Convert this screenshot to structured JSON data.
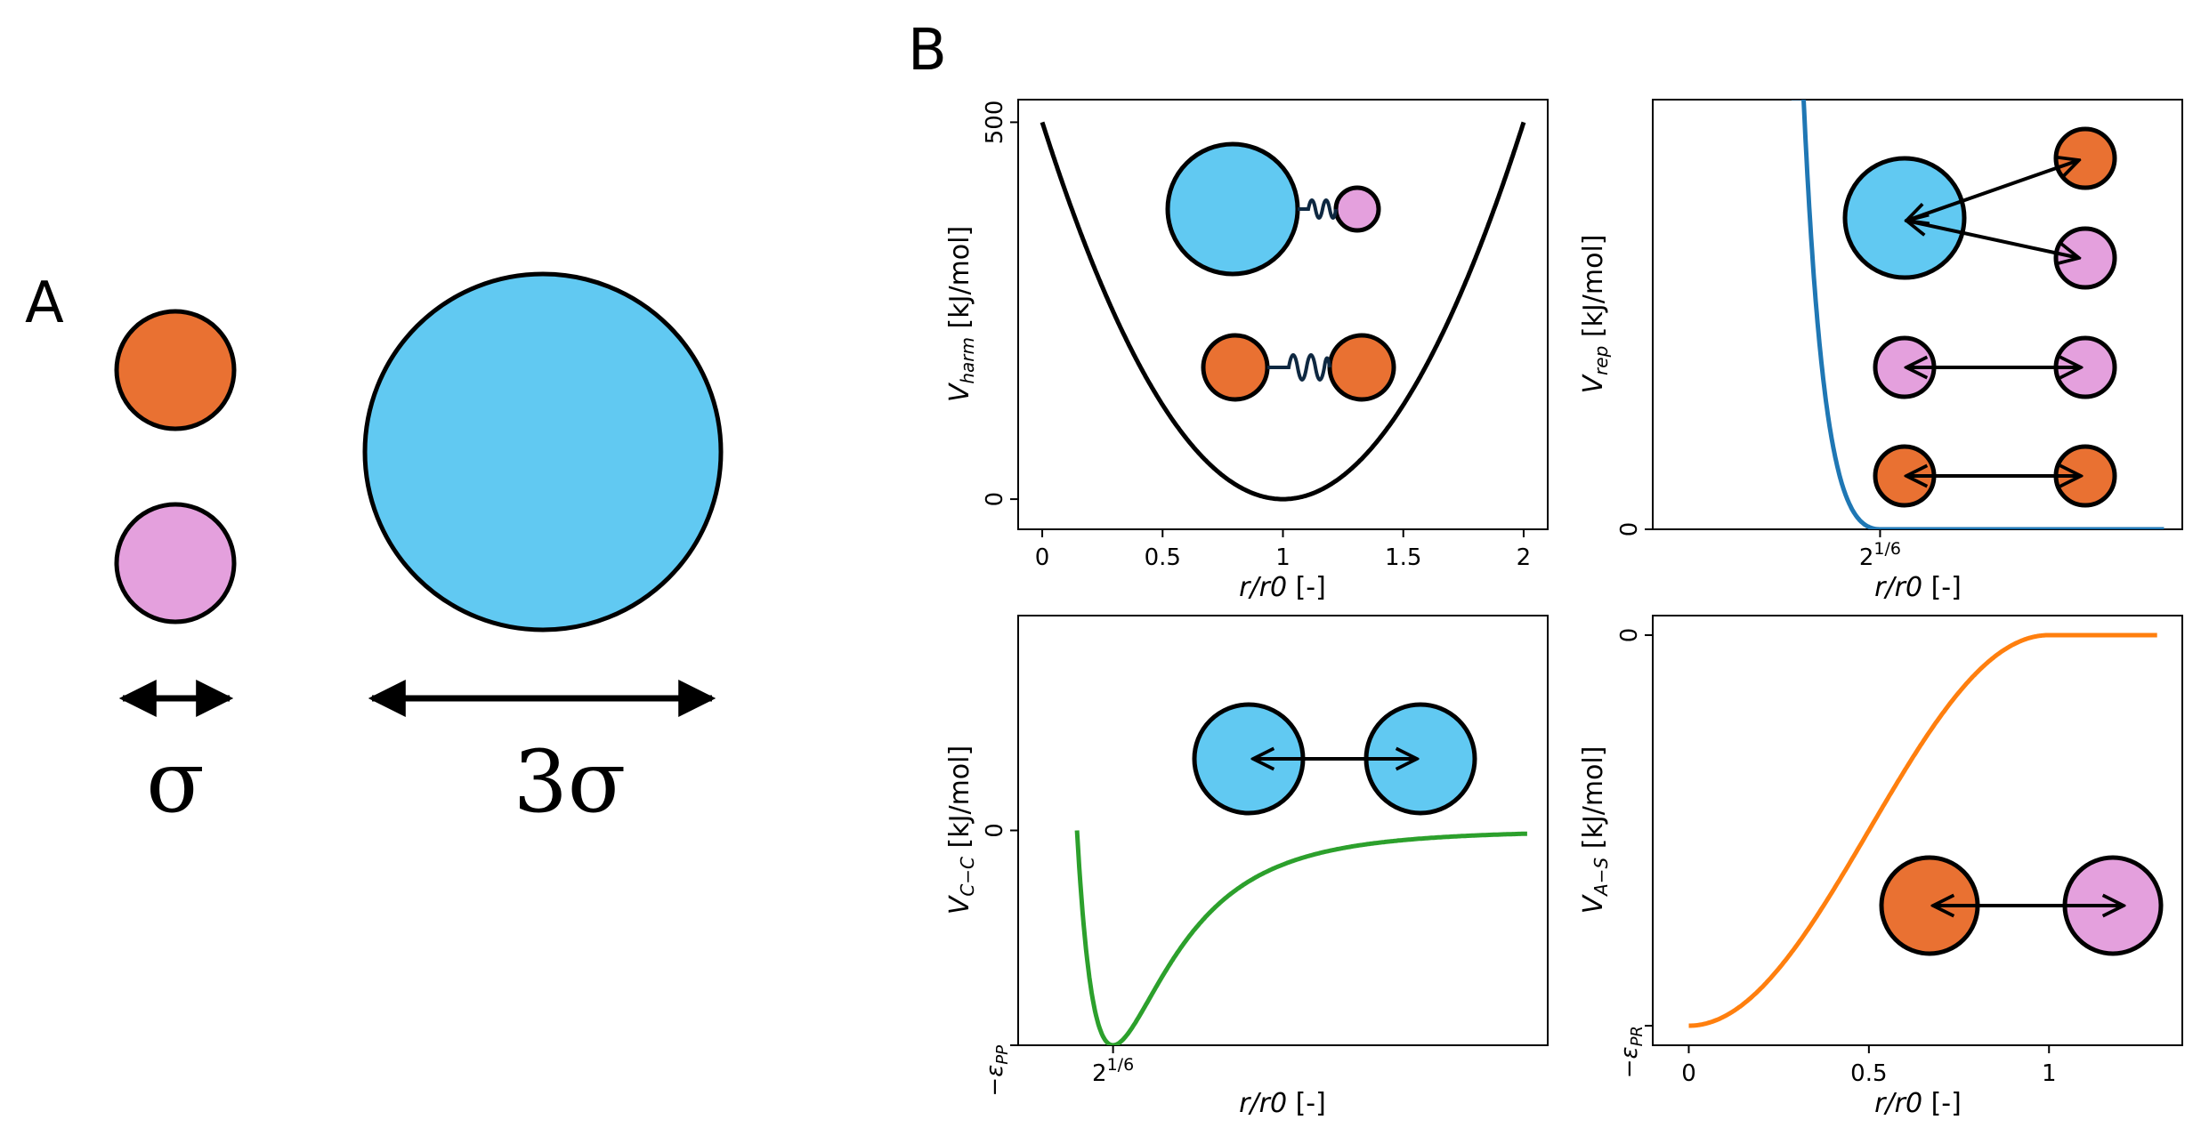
{
  "colors": {
    "small_orange": "#E97132",
    "small_pink": "#E4A0DD",
    "large_blue": "#61C9F2",
    "curve_harm": "#000000",
    "curve_rep": "#1F77B4",
    "curve_cc": "#2CA02C",
    "curve_as": "#FF7F0E",
    "spring": "#0E2841"
  },
  "panelA": {
    "letter": "A",
    "small_label": "σ",
    "large_label": "3σ"
  },
  "panelB": {
    "letter": "B"
  },
  "chart_data": [
    {
      "type": "line",
      "name_key": "harmonic",
      "ylabel_main": "V",
      "ylabel_sub": "harm",
      "ylabel_unit": " [kJ/mol]",
      "xlabel_main": "r/r0",
      "xlabel_unit": " [-]",
      "xlim": [
        -0.1,
        2.1
      ],
      "ylim": [
        -40,
        530
      ],
      "x_ticks": [
        "0",
        "0.5",
        "1",
        "1.5",
        "2"
      ],
      "x_tick_values": [
        0,
        0.5,
        1,
        1.5,
        2
      ],
      "y_ticks": [
        "0",
        "500"
      ],
      "y_tick_values": [
        0,
        500
      ],
      "function": "harmonic",
      "k": 500,
      "x_range": [
        0,
        2
      ]
    },
    {
      "type": "line",
      "name_key": "repulsive",
      "ylabel_main": "V",
      "ylabel_sub": "rep",
      "ylabel_unit": " [kJ/mol]",
      "xlabel_main": "r/r0",
      "xlabel_unit": " [-]",
      "xlim": [
        0.5,
        1.95
      ],
      "ylim": [
        0,
        6
      ],
      "x_ticks": [
        "2^1/6"
      ],
      "x_tick_base": "2",
      "x_tick_sup": "1/6",
      "x_tick_values": [
        1.1225
      ],
      "y_ticks": [
        "0"
      ],
      "y_tick_values": [
        0
      ],
      "function": "wca_repulsive",
      "x_range": [
        0.88,
        1.9
      ]
    },
    {
      "type": "line",
      "name_key": "cc",
      "ylabel_main": "V",
      "ylabel_sub": "C−C",
      "ylabel_unit": " [kJ/mol]",
      "xlabel_main": "r/r0",
      "xlabel_unit": " [-]",
      "xlim": [
        0.8,
        2.6
      ],
      "ylim": [
        -1,
        1
      ],
      "x_ticks": [
        "2^1/6"
      ],
      "x_tick_base": "2",
      "x_tick_sup": "1/6",
      "x_tick_values": [
        1.1225
      ],
      "y_ticks": [
        "0",
        "−ε_PP"
      ],
      "y_tick_values": [
        0,
        -1
      ],
      "y_tick_min_main": "−ε",
      "y_tick_min_sub": "PP",
      "function": "lennard_jones",
      "x_range": [
        1.0,
        2.53
      ]
    },
    {
      "type": "line",
      "name_key": "as",
      "ylabel_main": "V",
      "ylabel_sub": "A−S",
      "ylabel_unit": " [kJ/mol]",
      "xlabel_main": "r/r0",
      "xlabel_unit": " [-]",
      "xlim": [
        -0.1,
        1.37
      ],
      "ylim": [
        -1.05,
        0.05
      ],
      "x_ticks": [
        "0",
        "0.5",
        "1"
      ],
      "x_tick_values": [
        0,
        0.5,
        1
      ],
      "y_ticks": [
        "0",
        "−ε_PR"
      ],
      "y_tick_values": [
        0,
        -1
      ],
      "y_tick_min_main": "−ε",
      "y_tick_min_sub": "PR",
      "function": "cosine_attraction",
      "x_range": [
        0,
        1.3
      ]
    }
  ]
}
